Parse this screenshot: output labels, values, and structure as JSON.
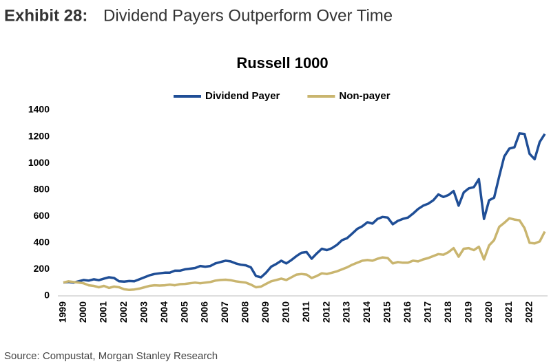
{
  "header": {
    "label": "Exhibit 28:",
    "title": "Dividend Payers Outperform Over Time"
  },
  "source": "Source: Compustat, Morgan Stanley Research",
  "chart_data": {
    "type": "line",
    "title": "Russell 1000",
    "categories": [
      "1999",
      null,
      null,
      null,
      "2000",
      null,
      null,
      null,
      "2001",
      null,
      null,
      null,
      "2002",
      null,
      null,
      null,
      "2003",
      null,
      null,
      null,
      "2004",
      null,
      null,
      null,
      "2005",
      null,
      null,
      null,
      "2006",
      null,
      null,
      null,
      "2007",
      null,
      null,
      null,
      "2008",
      null,
      null,
      null,
      "2009",
      null,
      null,
      null,
      "2010",
      null,
      null,
      null,
      "2011",
      null,
      null,
      null,
      "2012",
      null,
      null,
      null,
      "2013",
      null,
      null,
      null,
      "2014",
      null,
      null,
      null,
      "2015",
      null,
      null,
      null,
      "2016",
      null,
      null,
      null,
      "2017",
      null,
      null,
      null,
      "2018",
      null,
      null,
      null,
      "2019",
      null,
      null,
      null,
      "2020",
      null,
      null,
      null,
      "2021",
      null,
      null,
      null,
      "2022",
      null,
      null,
      null
    ],
    "series": [
      {
        "name": "Dividend Payer",
        "color": "#1f4e96",
        "values": [
          100,
          105,
          100,
          110,
          120,
          115,
          125,
          118,
          130,
          140,
          135,
          110,
          108,
          112,
          110,
          125,
          140,
          155,
          165,
          170,
          175,
          175,
          190,
          190,
          200,
          205,
          210,
          225,
          220,
          225,
          245,
          255,
          265,
          260,
          245,
          235,
          230,
          215,
          150,
          140,
          175,
          220,
          240,
          265,
          245,
          270,
          300,
          325,
          330,
          280,
          320,
          355,
          345,
          360,
          385,
          420,
          435,
          470,
          505,
          525,
          555,
          545,
          580,
          595,
          590,
          540,
          565,
          580,
          590,
          620,
          655,
          680,
          695,
          720,
          765,
          745,
          760,
          790,
          680,
          780,
          810,
          820,
          880,
          580,
          720,
          740,
          900,
          1050,
          1110,
          1120,
          1225,
          1220,
          1070,
          1030,
          1160,
          1220
        ]
      },
      {
        "name": "Non-payer",
        "color": "#c9b56f",
        "values": [
          100,
          110,
          105,
          100,
          95,
          80,
          75,
          65,
          75,
          60,
          70,
          65,
          50,
          45,
          48,
          55,
          65,
          75,
          80,
          78,
          80,
          85,
          80,
          88,
          90,
          95,
          100,
          95,
          100,
          105,
          115,
          120,
          122,
          118,
          110,
          105,
          100,
          85,
          65,
          70,
          90,
          110,
          120,
          130,
          120,
          140,
          160,
          165,
          160,
          135,
          150,
          170,
          165,
          175,
          185,
          200,
          215,
          235,
          250,
          265,
          270,
          265,
          280,
          290,
          285,
          245,
          255,
          250,
          250,
          265,
          260,
          275,
          285,
          300,
          315,
          310,
          330,
          360,
          295,
          355,
          360,
          345,
          370,
          275,
          380,
          420,
          520,
          550,
          585,
          575,
          570,
          510,
          400,
          395,
          410,
          485
        ]
      }
    ],
    "ylim": [
      0,
      1400
    ],
    "yticks": [
      0,
      200,
      400,
      600,
      800,
      1000,
      1200,
      1400
    ],
    "legend": "top"
  }
}
